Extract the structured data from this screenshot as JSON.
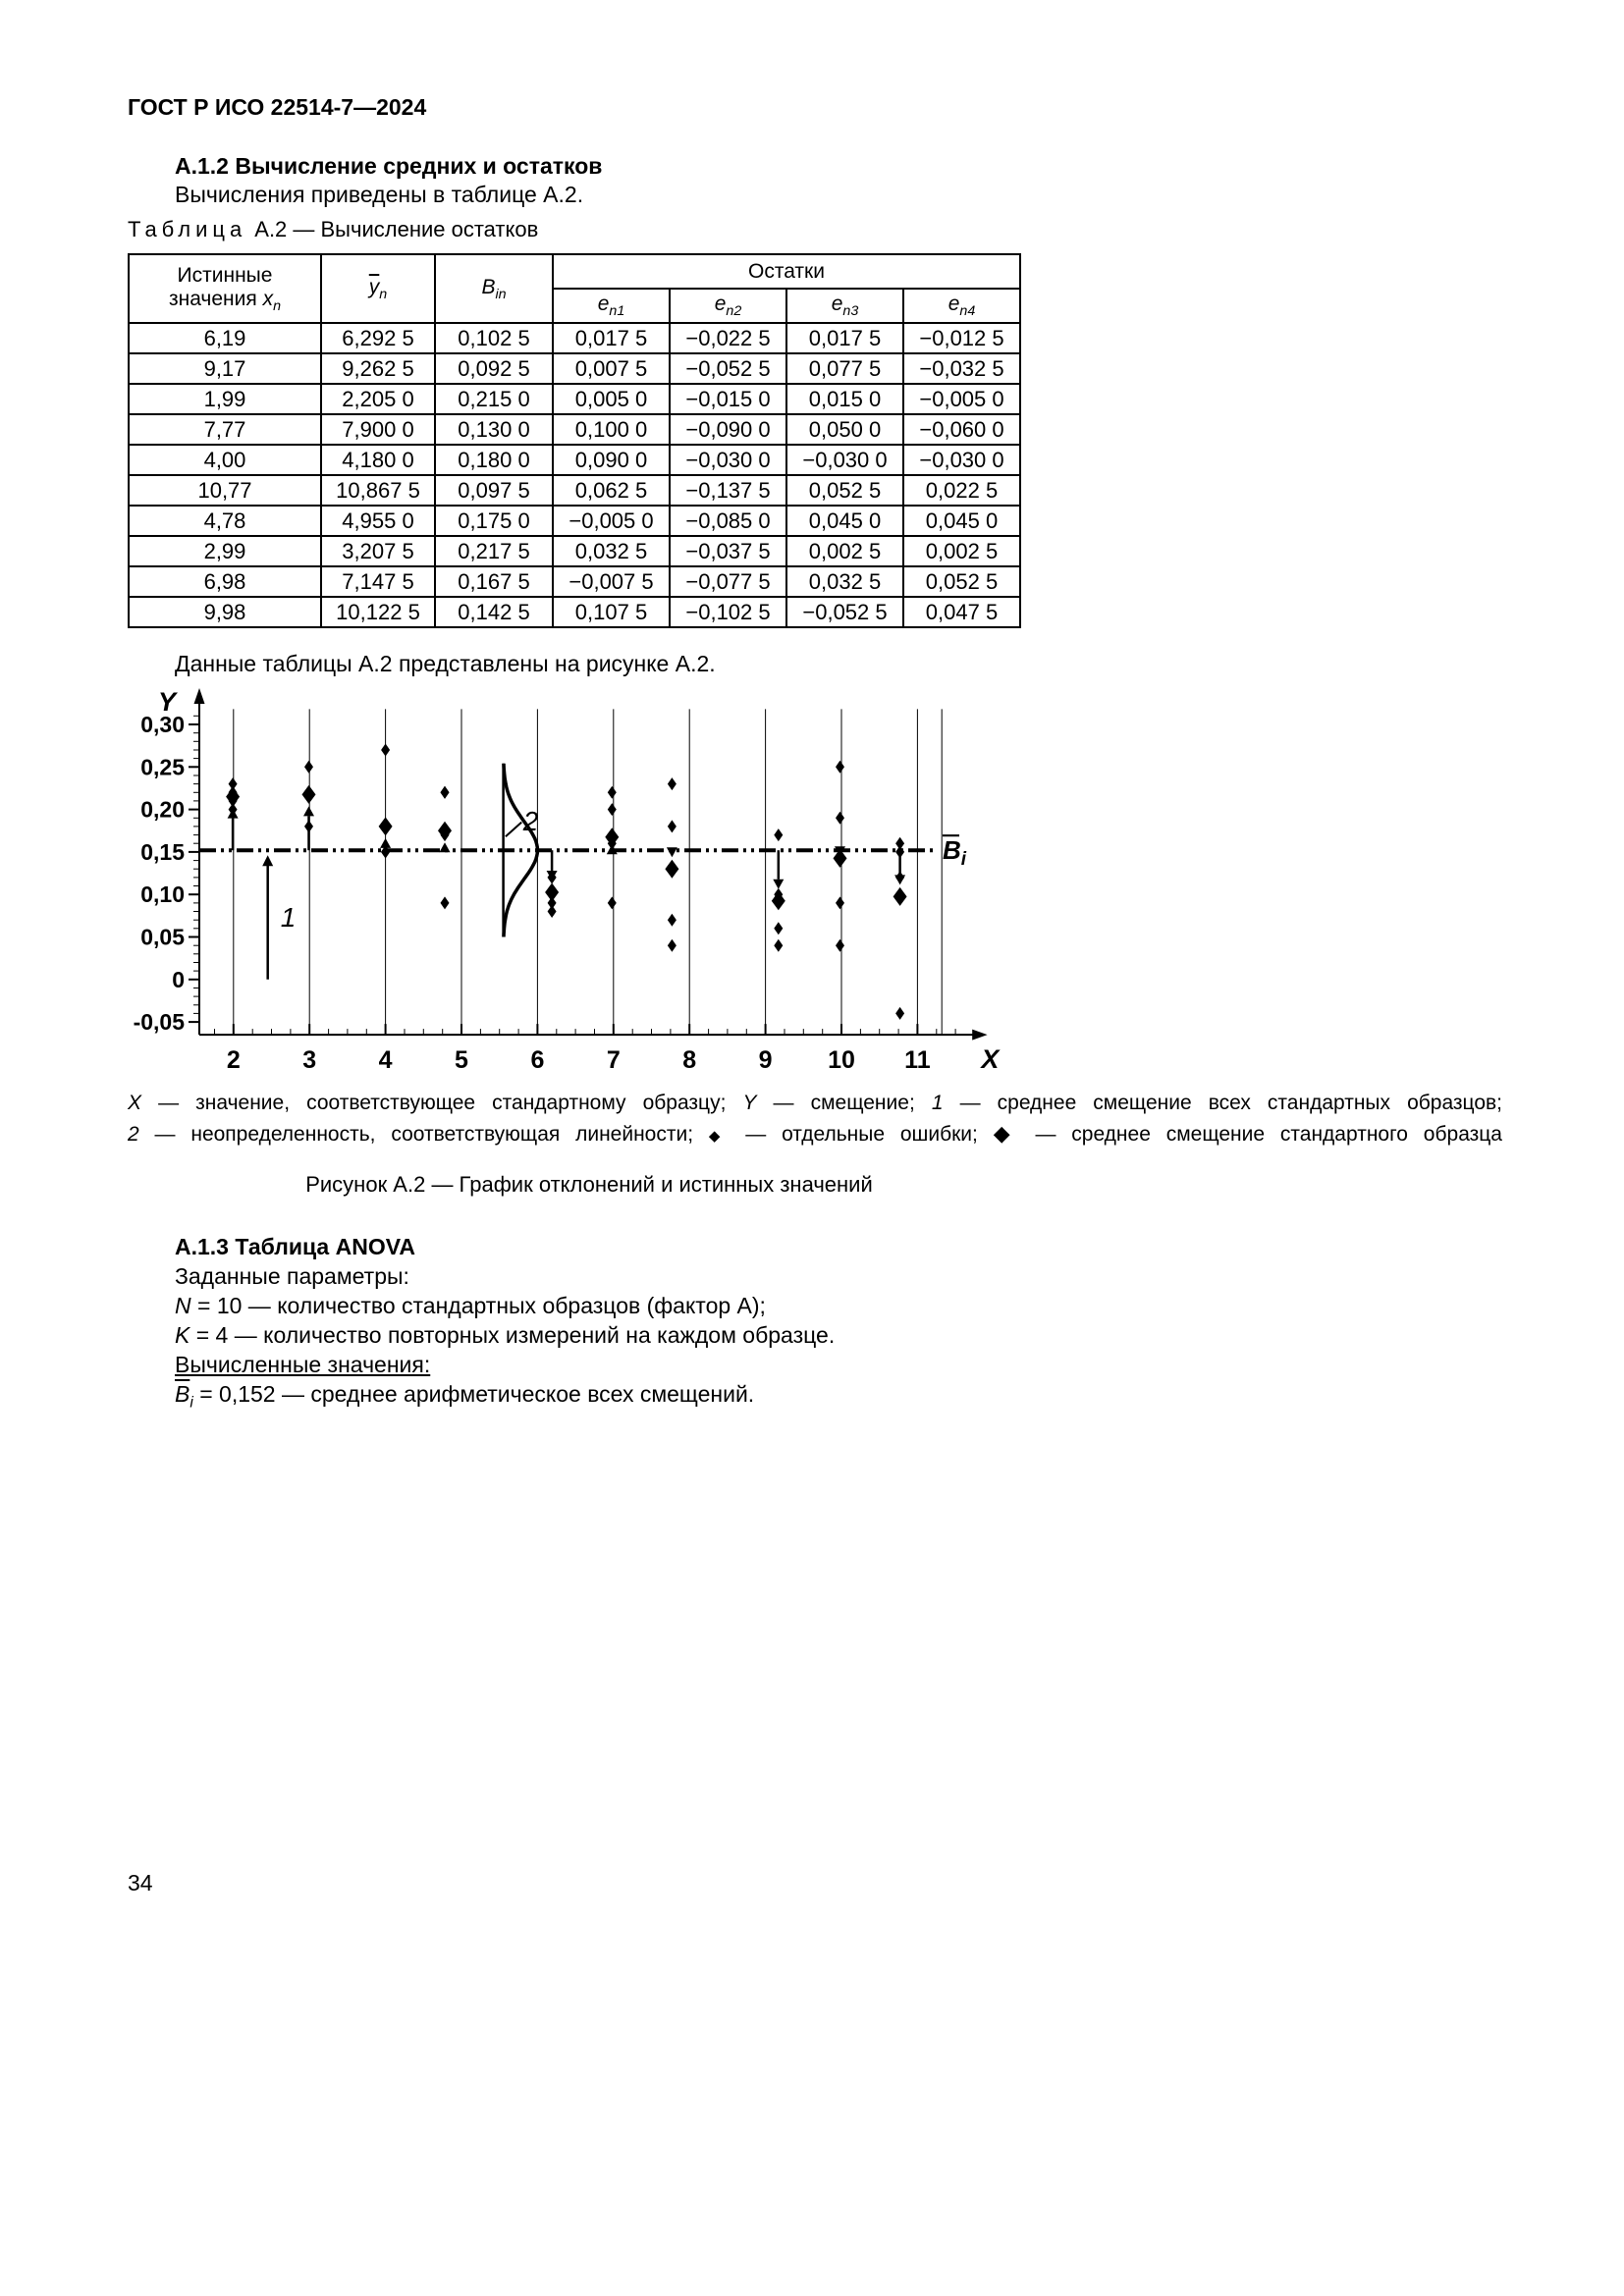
{
  "page": {
    "header": "ГОСТ Р ИСО 22514-7—2024",
    "number": "34"
  },
  "section_a12": {
    "heading": "А.1.2 Вычисление средних и остатков",
    "body": "Вычисления приведены в таблице А.2."
  },
  "table_caption": {
    "word": "Таблица",
    "rest": "А.2 — Вычисление остатков"
  },
  "table": {
    "col1": {
      "text": "Истинные значения ",
      "var": "x",
      "sub": "n"
    },
    "col2": {
      "var": "y",
      "sub": "n"
    },
    "col3": {
      "var": "B",
      "sub": "in"
    },
    "residuals_label": "Остатки",
    "residual_cols": [
      {
        "var": "e",
        "sub": "n1"
      },
      {
        "var": "e",
        "sub": "n2"
      },
      {
        "var": "e",
        "sub": "n3"
      },
      {
        "var": "e",
        "sub": "n4"
      }
    ],
    "rows": [
      [
        "6,19",
        "6,292 5",
        "0,102 5",
        "0,017 5",
        "−0,022 5",
        "0,017 5",
        "−0,012 5"
      ],
      [
        "9,17",
        "9,262 5",
        "0,092 5",
        "0,007 5",
        "−0,052 5",
        "0,077 5",
        "−0,032 5"
      ],
      [
        "1,99",
        "2,205 0",
        "0,215 0",
        "0,005 0",
        "−0,015 0",
        "0,015 0",
        "−0,005 0"
      ],
      [
        "7,77",
        "7,900 0",
        "0,130 0",
        "0,100 0",
        "−0,090 0",
        "0,050 0",
        "−0,060 0"
      ],
      [
        "4,00",
        "4,180 0",
        "0,180 0",
        "0,090 0",
        "−0,030 0",
        "−0,030 0",
        "−0,030 0"
      ],
      [
        "10,77",
        "10,867 5",
        "0,097 5",
        "0,062 5",
        "−0,137 5",
        "0,052 5",
        "0,022 5"
      ],
      [
        "4,78",
        "4,955 0",
        "0,175 0",
        "−0,005 0",
        "−0,085 0",
        "0,045 0",
        "0,045 0"
      ],
      [
        "2,99",
        "3,207 5",
        "0,217 5",
        "0,032 5",
        "−0,037 5",
        "0,002 5",
        "0,002 5"
      ],
      [
        "6,98",
        "7,147 5",
        "0,167 5",
        "−0,007 5",
        "−0,077 5",
        "0,032 5",
        "0,052 5"
      ],
      [
        "9,98",
        "10,122 5",
        "0,142 5",
        "0,107 5",
        "−0,102 5",
        "−0,052 5",
        "0,047 5"
      ]
    ]
  },
  "figure_intro": "Данные таблицы А.2 представлены на рисунке А.2.",
  "chart_data": {
    "type": "scatter",
    "x_axis_label": "X",
    "y_axis_label": "Y",
    "x_ticks": [
      2,
      3,
      4,
      5,
      6,
      7,
      8,
      9,
      10,
      11
    ],
    "y_ticks": [
      0.3,
      0.25,
      0.2,
      0.15,
      0.1,
      0.05,
      0,
      -0.05
    ],
    "y_tick_labels": [
      "0,30",
      "0,25",
      "0,20",
      "0,15",
      "0,10",
      "0,05",
      "0",
      "-0,05"
    ],
    "xlim": [
      1.55,
      11.75
    ],
    "ylim": [
      -0.065,
      0.335
    ],
    "grid_x": [
      2,
      3,
      4,
      5,
      6,
      7,
      8,
      9,
      10,
      11,
      11.32
    ],
    "grid_on": true,
    "legend_position": "none",
    "mean_line": {
      "value": 0.152,
      "label_base": "B",
      "label_sub": "i"
    },
    "mean_arrow": {
      "x": 2.45,
      "from": 0,
      "to": 0.148,
      "label": "1"
    },
    "linearity_curve": {
      "x": 5.55,
      "center": 0.152,
      "sigma": 0.034,
      "amp": 0.45,
      "label": "2"
    },
    "groups": [
      {
        "x": 1.99,
        "mean": 0.215,
        "points": [
          0.22,
          0.2,
          0.23,
          0.21
        ]
      },
      {
        "x": 2.99,
        "mean": 0.2175,
        "points": [
          0.25,
          0.18,
          0.22,
          0.22
        ]
      },
      {
        "x": 4.0,
        "mean": 0.18,
        "points": [
          0.27,
          0.15,
          0.15,
          0.15
        ]
      },
      {
        "x": 4.78,
        "mean": 0.175,
        "points": [
          0.17,
          0.09,
          0.22,
          0.22
        ]
      },
      {
        "x": 6.19,
        "mean": 0.1025,
        "points": [
          0.12,
          0.08,
          0.12,
          0.09
        ]
      },
      {
        "x": 6.98,
        "mean": 0.1675,
        "points": [
          0.16,
          0.09,
          0.2,
          0.22
        ]
      },
      {
        "x": 7.77,
        "mean": 0.13,
        "points": [
          0.23,
          0.04,
          0.18,
          0.07
        ]
      },
      {
        "x": 9.17,
        "mean": 0.0925,
        "points": [
          0.1,
          0.04,
          0.17,
          0.06
        ]
      },
      {
        "x": 9.98,
        "mean": 0.1425,
        "points": [
          0.25,
          0.04,
          0.09,
          0.19
        ]
      },
      {
        "x": 10.77,
        "mean": 0.0975,
        "points": [
          0.16,
          -0.04,
          0.15,
          0.12
        ]
      }
    ]
  },
  "figure_legend": {
    "lines": [
      {
        "segments": [
          {
            "t": "X",
            "i": true
          },
          {
            "t": " — значение, соответствующее стандартному образцу; "
          },
          {
            "t": "Y",
            "i": true
          },
          {
            "t": " — смещение; "
          },
          {
            "t": "1",
            "i": true
          },
          {
            "t": " — среднее смещение всех стандартных образцов;"
          }
        ]
      },
      {
        "segments": [
          {
            "t": "2",
            "i": true
          },
          {
            "t": " — неопределенность, соответствующая линейности; "
          },
          {
            "t": "◆",
            "icon": "small-diamond"
          },
          {
            "t": " — отдельные ошибки; "
          },
          {
            "t": "◆",
            "icon": "large-diamond"
          },
          {
            "t": " — среднее смещение стандартного образца"
          }
        ]
      }
    ]
  },
  "figure_caption": "Рисунок А.2 — График отклонений и истинных значений",
  "section_a13": {
    "lines": [
      {
        "segments": [
          {
            "t": "А.1.3 Таблица ANOVA",
            "b": true
          }
        ]
      },
      {
        "segments": [
          {
            "t": "Заданные параметры:"
          }
        ]
      },
      {
        "segments": [
          {
            "t": "N",
            "i": true
          },
          {
            "t": " = 10 — количество стандартных образцов (фактор А);"
          }
        ]
      },
      {
        "segments": [
          {
            "t": "K",
            "i": true
          },
          {
            "t": " = 4 — количество повторных измерений на каждом образце."
          }
        ]
      },
      {
        "segments": [
          {
            "t": "Вычисленные значения:",
            "u": true
          }
        ]
      },
      {
        "segments": [
          {
            "t": "B",
            "i": true,
            "ov": true
          },
          {
            "t": "i",
            "i": true,
            "sub": true
          },
          {
            "t": " = 0,152 — среднее арифметическое всех смещений."
          }
        ]
      }
    ]
  }
}
